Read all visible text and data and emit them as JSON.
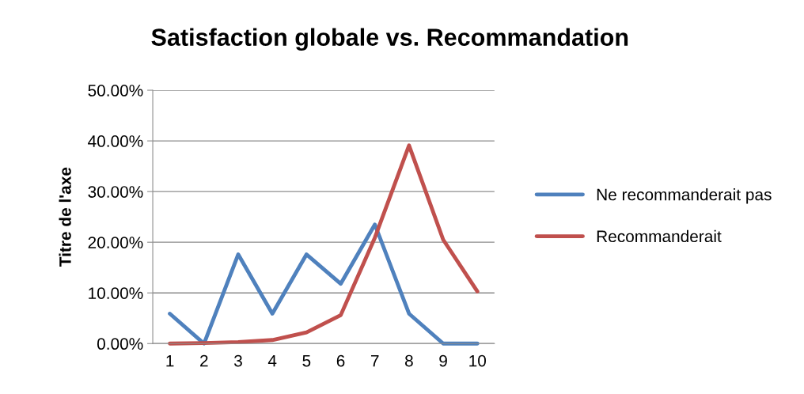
{
  "chart_data": {
    "type": "line",
    "title": "Satisfaction globale vs. Recommandation",
    "ylabel": "Titre de l'axe",
    "categories": [
      "1",
      "2",
      "3",
      "4",
      "5",
      "6",
      "7",
      "8",
      "9",
      "10"
    ],
    "series": [
      {
        "name": "Ne recommanderait pas",
        "color": "#4f81bd",
        "values": [
          5.9,
          0,
          17.6,
          5.9,
          17.6,
          11.8,
          23.5,
          5.9,
          0,
          0
        ]
      },
      {
        "name": "Recommanderait",
        "color": "#c0504d",
        "values": [
          0,
          0.1,
          0.3,
          0.7,
          2.2,
          5.6,
          20.9,
          39.1,
          20.5,
          10.3
        ]
      }
    ],
    "ylim": [
      0,
      50
    ],
    "yticks": [
      {
        "value": 0,
        "label": "0.00%"
      },
      {
        "value": 10,
        "label": "10.00%"
      },
      {
        "value": 20,
        "label": "20.00%"
      },
      {
        "value": 30,
        "label": "30.00%"
      },
      {
        "value": 40,
        "label": "40.00%"
      },
      {
        "value": 50,
        "label": "50.00%"
      }
    ],
    "grid": "y",
    "legend": "right",
    "marker": "none",
    "line_style": "solid"
  }
}
